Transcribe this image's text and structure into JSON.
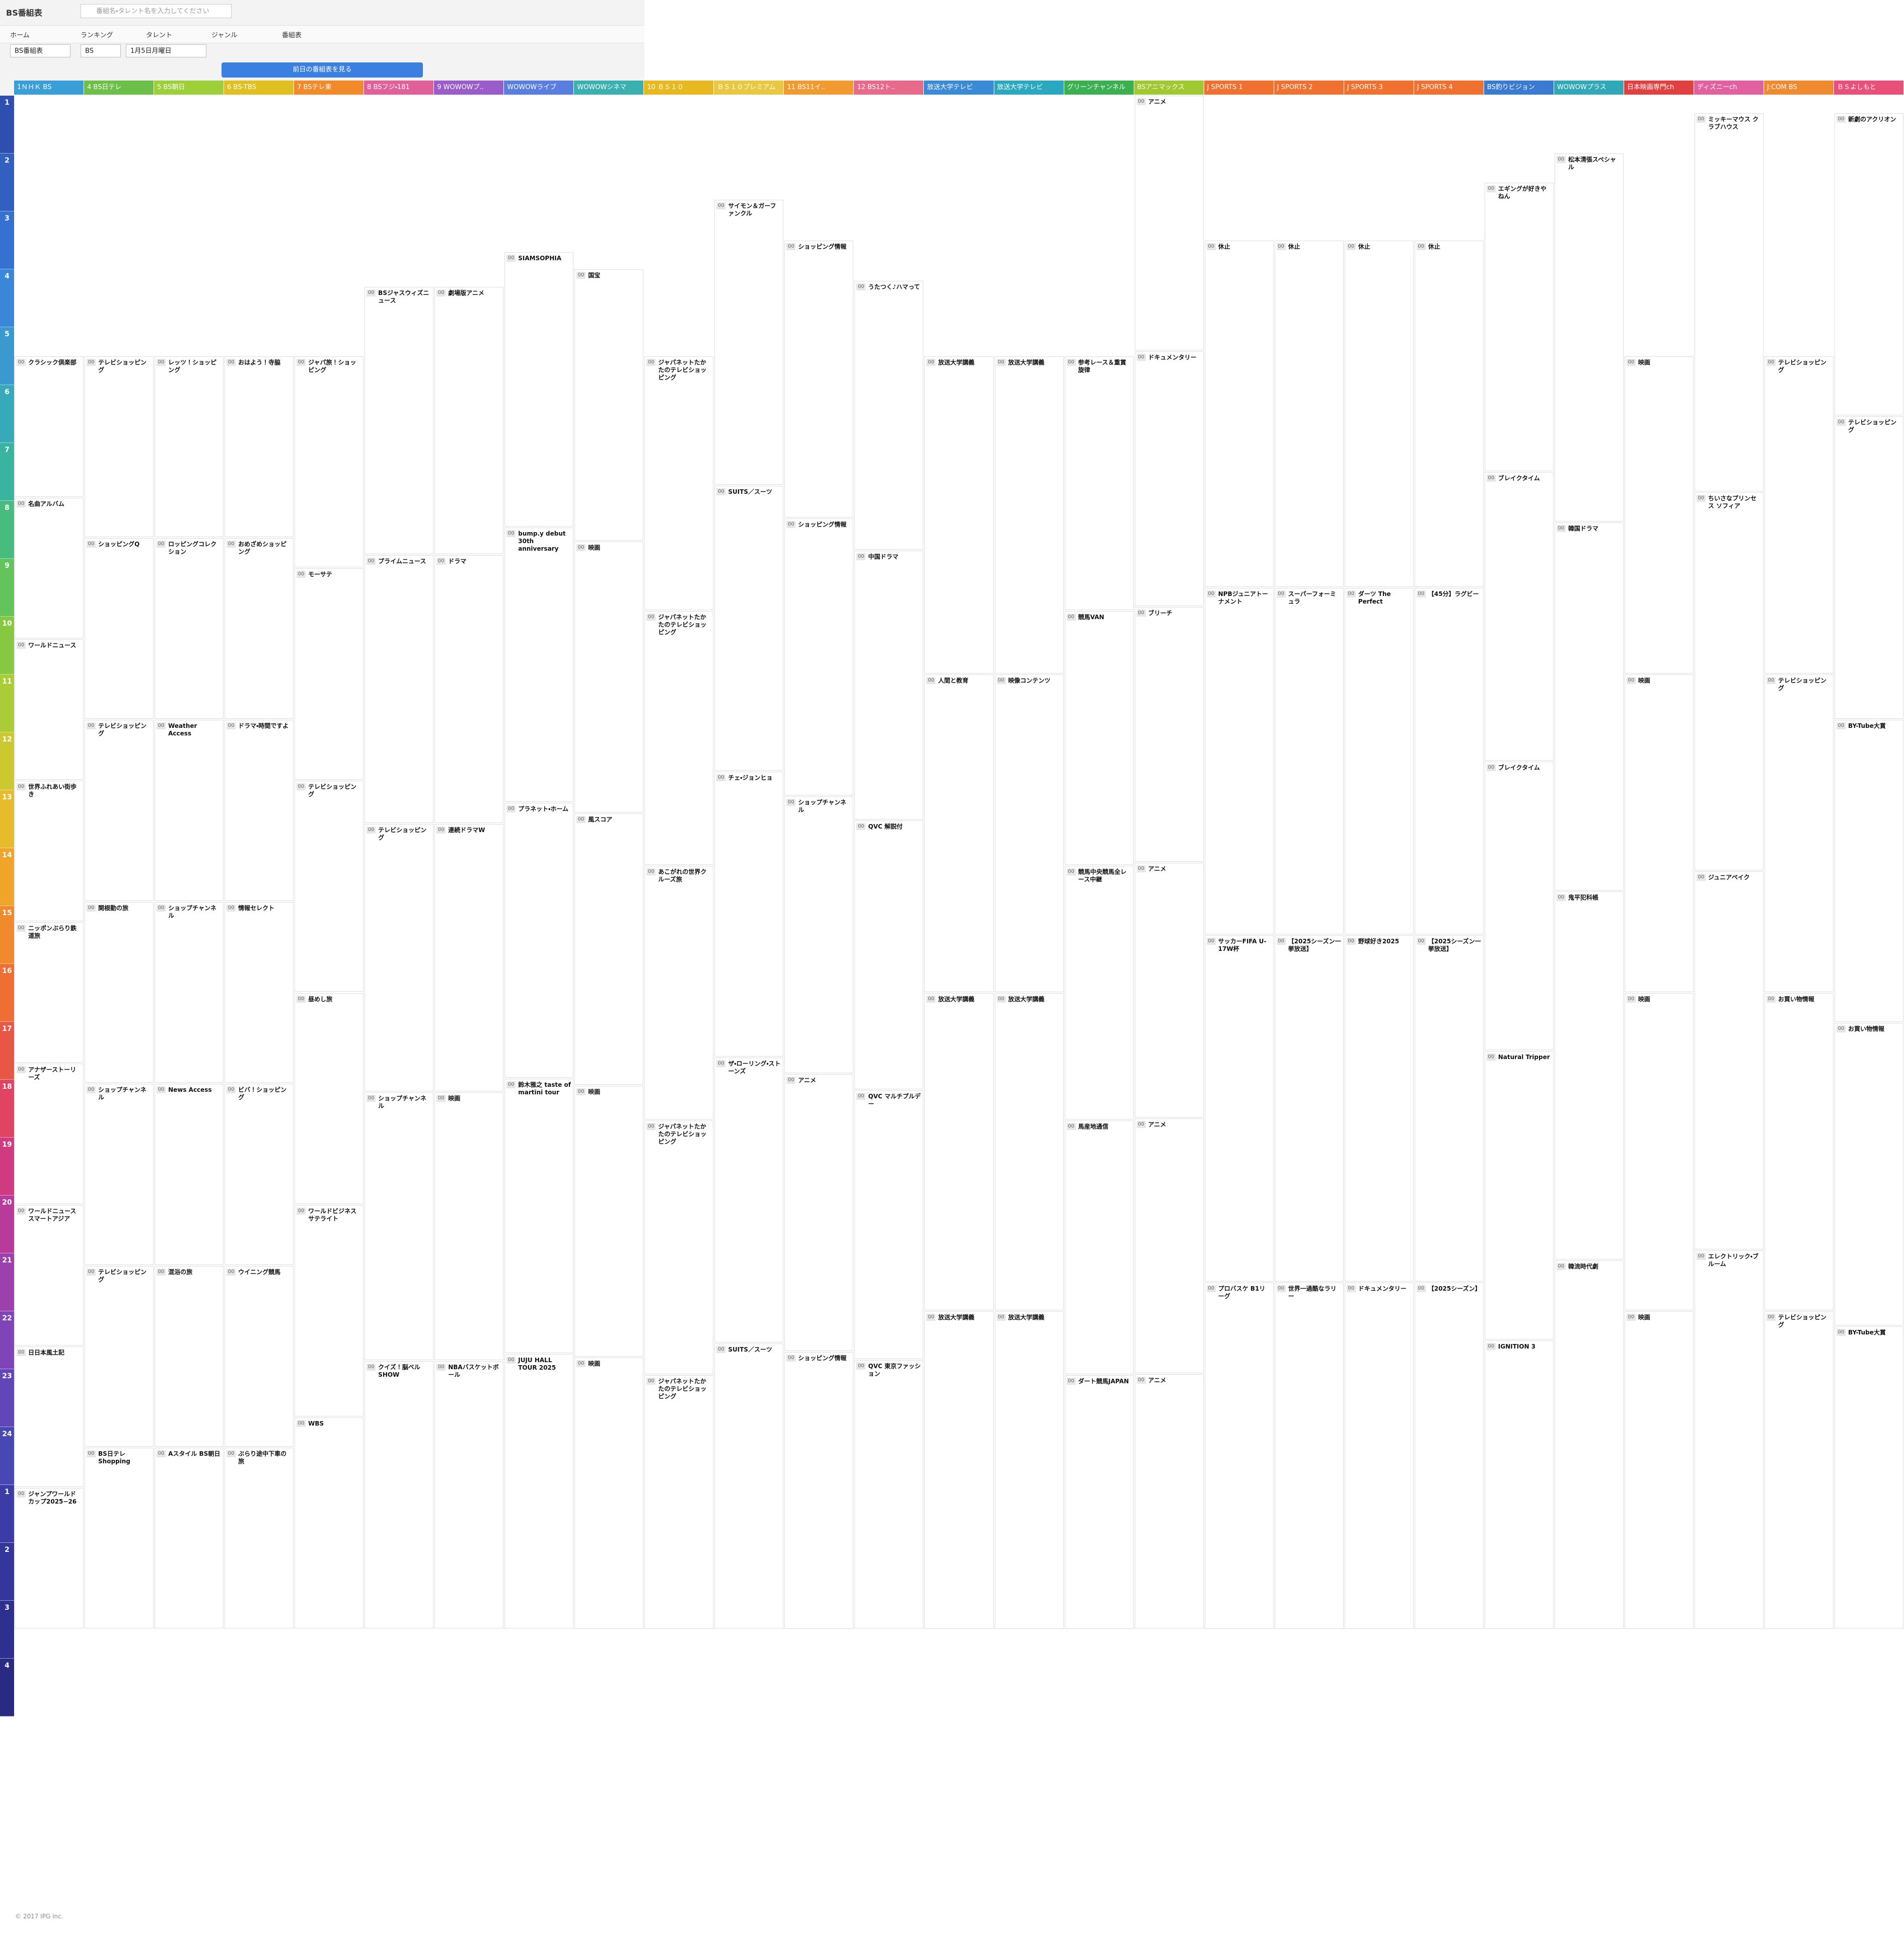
{
  "header": {
    "logo": "BS番組表",
    "search_placeholder": "番組名・タレント名を入力してください",
    "nav": [
      "ホーム",
      "ランキング",
      "タレント",
      "ジャンル",
      "番組表"
    ],
    "selects": [
      "BS番組表",
      "BS",
      "1月5日月曜日"
    ],
    "prev_button": "前日の番組表を見る"
  },
  "hours": [
    1,
    2,
    3,
    4,
    5,
    6,
    7,
    8,
    9,
    10,
    11,
    12,
    13,
    14,
    15,
    16,
    17,
    18,
    19,
    20,
    21,
    22,
    23,
    24,
    1,
    2,
    3,
    4
  ],
  "channels": [
    {
      "name": "1ＮＨＫ BS",
      "color": "#3a9fd6",
      "programs": [
        {
          "min": "00",
          "title": "クラシック倶楽部"
        },
        {
          "min": "00",
          "title": "名曲アルバム"
        },
        {
          "min": "00",
          "title": "ワールドニュース"
        },
        {
          "min": "00",
          "title": "世界ふれあい街歩き"
        },
        {
          "min": "00",
          "title": "ニッポンぶらり鉄道旅"
        },
        {
          "min": "00",
          "title": "アナザーストーリーズ"
        },
        {
          "min": "00",
          "title": "ワールドニュース スマートアジア"
        },
        {
          "min": "00",
          "title": "日日本風土記"
        },
        {
          "min": "00",
          "title": "ジャンプワールドカップ2025−26"
        }
      ]
    },
    {
      "name": "4 BS日テレ",
      "color": "#6cc04a",
      "programs": [
        {
          "min": "00",
          "title": "テレビショッピング"
        },
        {
          "min": "00",
          "title": "ショッピングQ"
        },
        {
          "min": "00",
          "title": "テレビショッピング"
        },
        {
          "min": "00",
          "title": "関根勤の旅"
        },
        {
          "min": "00",
          "title": "ショップチャンネル"
        },
        {
          "min": "00",
          "title": "テレビショッピング"
        },
        {
          "min": "00",
          "title": "BS日テレ Shopping"
        }
      ]
    },
    {
      "name": "5 BS朝日",
      "color": "#9ccf3a",
      "programs": [
        {
          "min": "00",
          "title": "レッツ！ショッピング"
        },
        {
          "min": "00",
          "title": "ロッピングコレクション"
        },
        {
          "min": "00",
          "title": "Weather Access"
        },
        {
          "min": "00",
          "title": "ショップチャンネル"
        },
        {
          "min": "00",
          "title": "News Access"
        },
        {
          "min": "00",
          "title": "混浴の旅"
        },
        {
          "min": "00",
          "title": "Aスタイル BS朝日"
        }
      ]
    },
    {
      "name": "6 BS-TBS",
      "color": "#e0c020",
      "programs": [
        {
          "min": "00",
          "title": "おはよう！寺脇"
        },
        {
          "min": "00",
          "title": "おめざめショッピング"
        },
        {
          "min": "00",
          "title": "ドラマ・時間ですよ"
        },
        {
          "min": "00",
          "title": "情報セレクト"
        },
        {
          "min": "00",
          "title": "ビバ！ショッピング"
        },
        {
          "min": "00",
          "title": "ウイニング競馬"
        },
        {
          "min": "00",
          "title": "ぶらり途中下車の旅"
        }
      ]
    },
    {
      "name": "7 BSテレ東",
      "color": "#f08a2a",
      "programs": [
        {
          "min": "00",
          "title": "ジャパ旅！ショッピング"
        },
        {
          "min": "00",
          "title": "モーサテ"
        },
        {
          "min": "00",
          "title": "テレビショッピング"
        },
        {
          "min": "00",
          "title": "昼めし旅"
        },
        {
          "min": "00",
          "title": "ワールドビジネスサテライト"
        },
        {
          "min": "00",
          "title": "WBS"
        }
      ]
    },
    {
      "name": "8 BSフジ・181",
      "color": "#e0609a",
      "programs": [
        {
          "min": "00",
          "title": "BSジャスウィズニュース"
        },
        {
          "min": "00",
          "title": "プライムニュース"
        },
        {
          "min": "00",
          "title": "テレビショッピング"
        },
        {
          "min": "00",
          "title": "ショップチャンネル"
        },
        {
          "min": "00",
          "title": "クイズ！脳ベルSHOW"
        }
      ]
    },
    {
      "name": "9 WOWOWプ..",
      "color": "#9a5cc8",
      "programs": [
        {
          "min": "00",
          "title": "劇場版アニメ"
        },
        {
          "min": "00",
          "title": "ドラマ"
        },
        {
          "min": "00",
          "title": "連続ドラマW"
        },
        {
          "min": "00",
          "title": "映画"
        },
        {
          "min": "00",
          "title": "NBAバスケットボール"
        }
      ]
    },
    {
      "name": "WOWOWライブ",
      "color": "#5a7ee0",
      "programs": [
        {
          "min": "00",
          "title": "SIAMSOPHIA"
        },
        {
          "min": "00",
          "title": "bump.y debut 30th anniversary"
        },
        {
          "min": "00",
          "title": "プラネット・ホーム"
        },
        {
          "min": "00",
          "title": "鈴木雅之 taste of martini tour"
        },
        {
          "min": "00",
          "title": "JUJU HALL TOUR 2025"
        }
      ]
    },
    {
      "name": "WOWOWシネマ",
      "color": "#3ab0b0",
      "programs": [
        {
          "min": "00",
          "title": "国宝"
        },
        {
          "min": "00",
          "title": "映画"
        },
        {
          "min": "00",
          "title": "風スコア"
        },
        {
          "min": "00",
          "title": "映画"
        },
        {
          "min": "00",
          "title": "映画"
        }
      ]
    },
    {
      "name": "10 ＢＳ１０",
      "color": "#e8b820",
      "programs": [
        {
          "min": "00",
          "title": "ジャパネットたかたのテレビショッピング"
        },
        {
          "min": "00",
          "title": "ジャパネットたかたのテレビショッピング"
        },
        {
          "min": "00",
          "title": "あこがれの世界クルーズ旅"
        },
        {
          "min": "00",
          "title": "ジャパネットたかたのテレビショッピング"
        },
        {
          "min": "00",
          "title": "ジャパネットたかたのテレビショッピング"
        }
      ]
    },
    {
      "name": "ＢＳ１０プレミアム",
      "color": "#e8c840",
      "programs": [
        {
          "min": "00",
          "title": "サイモン＆ガーファンクル"
        },
        {
          "min": "00",
          "title": "SUITS／スーツ"
        },
        {
          "min": "00",
          "title": "チェ・ジョンヒョ"
        },
        {
          "min": "00",
          "title": "ザ・ローリング・ストーンズ"
        },
        {
          "min": "00",
          "title": "SUITS／スーツ"
        }
      ]
    },
    {
      "name": "11 BS11イ..",
      "color": "#f09a30",
      "programs": [
        {
          "min": "00",
          "title": "ショッピング情報"
        },
        {
          "min": "00",
          "title": "ショッピング情報"
        },
        {
          "min": "00",
          "title": "ショップチャンネル"
        },
        {
          "min": "00",
          "title": "アニメ"
        },
        {
          "min": "00",
          "title": "ショッピング情報"
        }
      ]
    },
    {
      "name": "12 BS12ト..",
      "color": "#e86a8a",
      "programs": [
        {
          "min": "00",
          "title": "うたつく♪ハマって"
        },
        {
          "min": "00",
          "title": "中国ドラマ"
        },
        {
          "min": "00",
          "title": "QVC 解説付"
        },
        {
          "min": "00",
          "title": "QVC マルチプルデー"
        },
        {
          "min": "00",
          "title": "QVC 東京ファッション"
        }
      ]
    },
    {
      "name": "放送大学テレビ",
      "color": "#3a8ad6",
      "programs": [
        {
          "min": "00",
          "title": "放送大学講義"
        },
        {
          "min": "00",
          "title": "人間と教育"
        },
        {
          "min": "00",
          "title": "放送大学講義"
        },
        {
          "min": "00",
          "title": "放送大学講義"
        }
      ]
    },
    {
      "name": "放送大学テレビ",
      "color": "#2aa8c0",
      "programs": [
        {
          "min": "00",
          "title": "放送大学講義"
        },
        {
          "min": "00",
          "title": "映像コンテンツ"
        },
        {
          "min": "00",
          "title": "放送大学講義"
        },
        {
          "min": "00",
          "title": "放送大学講義"
        }
      ]
    },
    {
      "name": "グリーンチャンネル",
      "color": "#3ab050",
      "programs": [
        {
          "min": "00",
          "title": "参考レース＆重賞旋律"
        },
        {
          "min": "00",
          "title": "競馬VAN"
        },
        {
          "min": "00",
          "title": "競馬中央競馬全レース中継"
        },
        {
          "min": "00",
          "title": "馬産地通信"
        },
        {
          "min": "00",
          "title": "ダート競馬JAPAN"
        }
      ]
    },
    {
      "name": "BSアニマックス",
      "color": "#a0c830",
      "programs": [
        {
          "min": "00",
          "title": "アニメ"
        },
        {
          "min": "00",
          "title": "ドキュメンタリー"
        },
        {
          "min": "00",
          "title": "ブリーチ"
        },
        {
          "min": "00",
          "title": "アニメ"
        },
        {
          "min": "00",
          "title": "アニメ"
        },
        {
          "min": "00",
          "title": "アニメ"
        }
      ]
    },
    {
      "name": "J SPORTS 1",
      "color": "#f07030",
      "programs": [
        {
          "min": "00",
          "title": "休止"
        },
        {
          "min": "00",
          "title": "NPBジュニアトーナメント"
        },
        {
          "min": "00",
          "title": "サッカーFIFA U-17W杯"
        },
        {
          "min": "00",
          "title": "プロバスケ B1リーグ"
        }
      ]
    },
    {
      "name": "J SPORTS 2",
      "color": "#f07030",
      "programs": [
        {
          "min": "00",
          "title": "休止"
        },
        {
          "min": "00",
          "title": "スーパーフォーミュラ"
        },
        {
          "min": "00",
          "title": "【2025シーズン一挙放送】"
        },
        {
          "min": "00",
          "title": "世界一過酷なラリー"
        }
      ]
    },
    {
      "name": "J SPORTS 3",
      "color": "#f07030",
      "programs": [
        {
          "min": "00",
          "title": "休止"
        },
        {
          "min": "00",
          "title": "ダーツ The Perfect"
        },
        {
          "min": "00",
          "title": "野球好き2025"
        },
        {
          "min": "00",
          "title": "ドキュメンタリー"
        }
      ]
    },
    {
      "name": "J SPORTS 4",
      "color": "#f07030",
      "programs": [
        {
          "min": "00",
          "title": "休止"
        },
        {
          "min": "00",
          "title": "【45分】ラグビー"
        },
        {
          "min": "00",
          "title": "【2025シーズン一挙放送】"
        },
        {
          "min": "00",
          "title": "【2025シーズン】"
        }
      ]
    },
    {
      "name": "BS釣りビジョン",
      "color": "#3a7ad0",
      "programs": [
        {
          "min": "00",
          "title": "エギングが好きやねん"
        },
        {
          "min": "00",
          "title": "ブレイクタイム"
        },
        {
          "min": "00",
          "title": "ブレイクタイム"
        },
        {
          "min": "00",
          "title": "Natural Tripper"
        },
        {
          "min": "00",
          "title": "IGNITION 3"
        }
      ]
    },
    {
      "name": "WOWOWプラス",
      "color": "#30a8b8",
      "programs": [
        {
          "min": "00",
          "title": "松本清張スペシャル"
        },
        {
          "min": "00",
          "title": "韓国ドラマ"
        },
        {
          "min": "00",
          "title": "鬼平犯科帳"
        },
        {
          "min": "00",
          "title": "韓流時代劇"
        }
      ]
    },
    {
      "name": "日本映画専門ch",
      "color": "#e04040",
      "programs": [
        {
          "min": "00",
          "title": "映画"
        },
        {
          "min": "00",
          "title": "映画"
        },
        {
          "min": "00",
          "title": "映画"
        },
        {
          "min": "00",
          "title": "映画"
        }
      ]
    },
    {
      "name": "ディズニーch",
      "color": "#e060a0",
      "programs": [
        {
          "min": "00",
          "title": "ミッキーマウス クラブハウス"
        },
        {
          "min": "00",
          "title": "ちいさなプリンセス ソフィア"
        },
        {
          "min": "00",
          "title": "ジュニアペイク"
        },
        {
          "min": "00",
          "title": "エレクトリック・ブルーム"
        }
      ]
    },
    {
      "name": "J:COM BS",
      "color": "#f08a30",
      "programs": [
        {
          "min": "00",
          "title": "テレビショッピング"
        },
        {
          "min": "00",
          "title": "テレビショッピング"
        },
        {
          "min": "00",
          "title": "お買い物情報"
        },
        {
          "min": "00",
          "title": "テレビショッピング"
        }
      ]
    },
    {
      "name": "ＢＳよしもと",
      "color": "#e8507a",
      "programs": [
        {
          "min": "00",
          "title": "新劇のアクリオン"
        },
        {
          "min": "00",
          "title": "テレビショッピング"
        },
        {
          "min": "00",
          "title": "BY-Tube大賞"
        },
        {
          "min": "00",
          "title": "お買い物情報"
        },
        {
          "min": "00",
          "title": "BY-Tube大賞"
        }
      ]
    }
  ],
  "footer": "© 2017 IPG inc."
}
